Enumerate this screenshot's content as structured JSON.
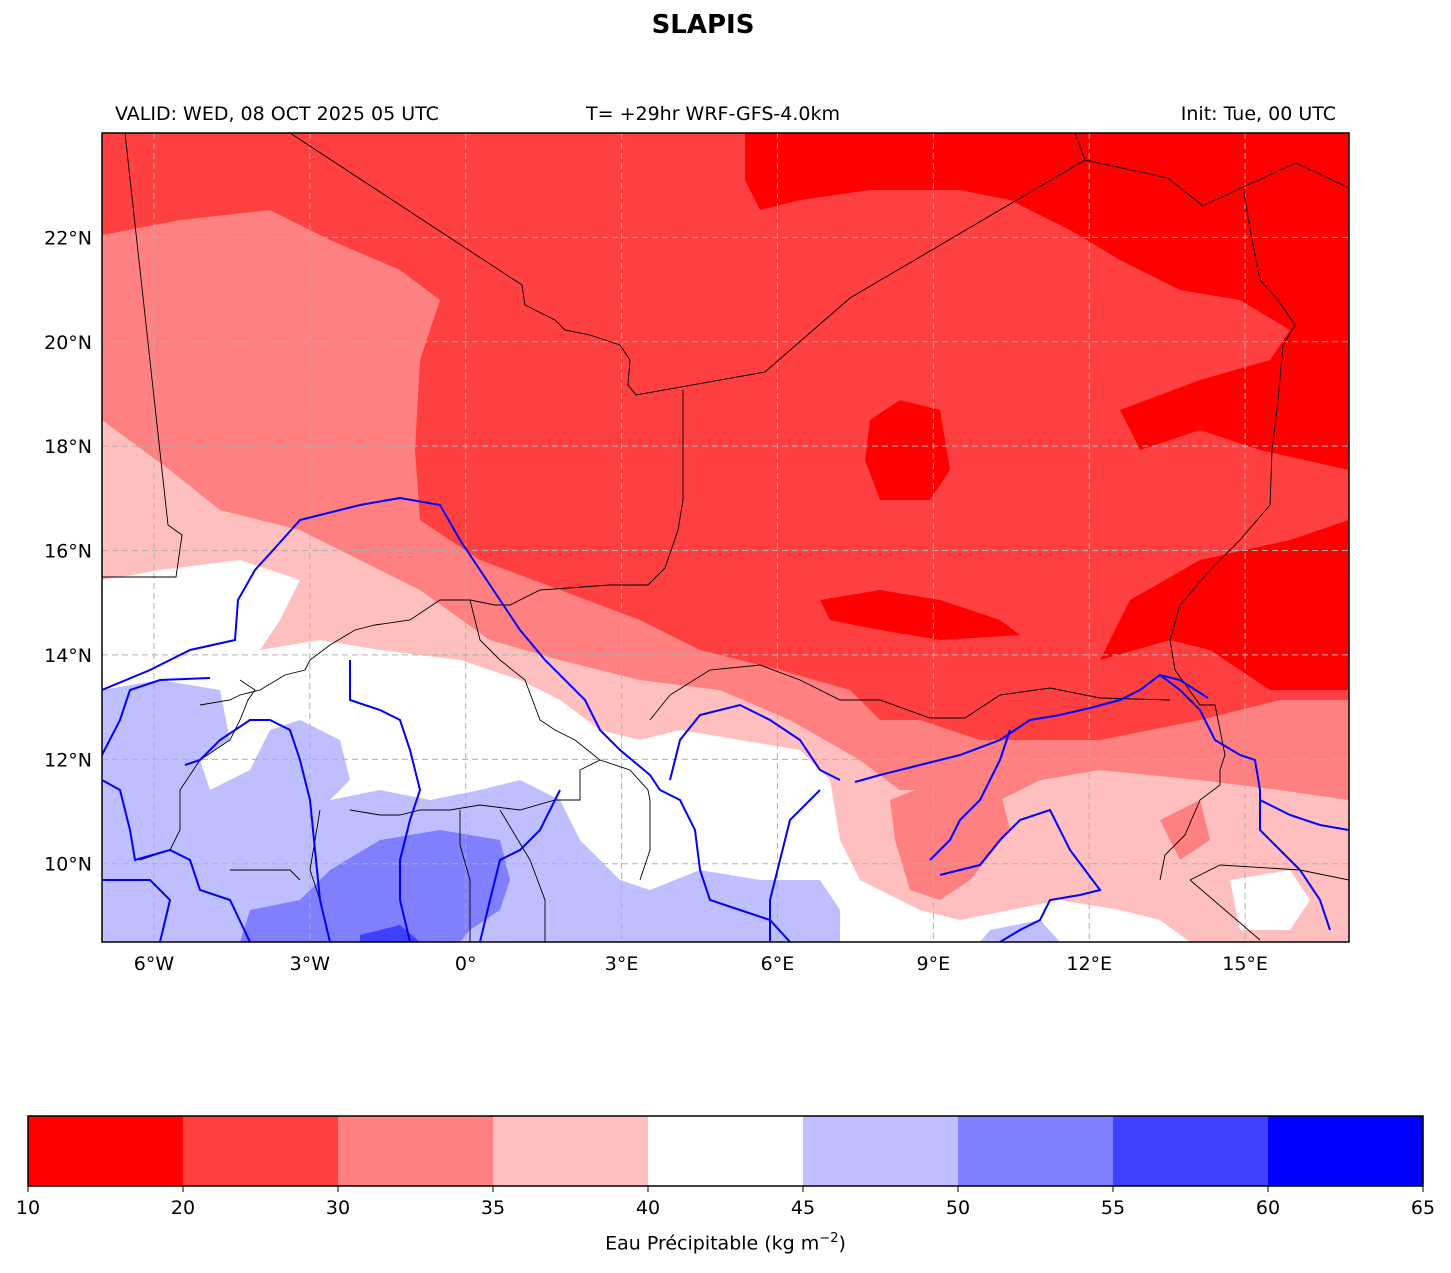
{
  "title": "SLAPIS",
  "header": {
    "valid": "VALID: WED, 08 OCT 2025 05 UTC",
    "run": "T= +29hr WRF-GFS-4.0km",
    "init": "Init: Tue, 00 UTC"
  },
  "map": {
    "lon_range": [
      -7,
      17
    ],
    "lat_range": [
      8.5,
      24
    ],
    "lon_ticks": [
      "6°W",
      "3°W",
      "0°",
      "3°E",
      "6°E",
      "9°E",
      "12°E",
      "15°E"
    ],
    "lat_ticks": [
      "22°N",
      "20°N",
      "18°N",
      "16°N",
      "14°N",
      "12°N",
      "10°N"
    ],
    "gridlines": true
  },
  "colorbar": {
    "bounds": [
      "10",
      "20",
      "30",
      "35",
      "40",
      "45",
      "50",
      "55",
      "60",
      "65"
    ],
    "colors": [
      "#ff0000",
      "#ff4040",
      "#ff8080",
      "#ffbfbf",
      "#ffffff",
      "#bfbfff",
      "#8080ff",
      "#4040ff",
      "#0000ff"
    ],
    "label_text": "Eau Précipitable (kg m",
    "label_exp": "−2",
    "label_close": ")"
  }
}
